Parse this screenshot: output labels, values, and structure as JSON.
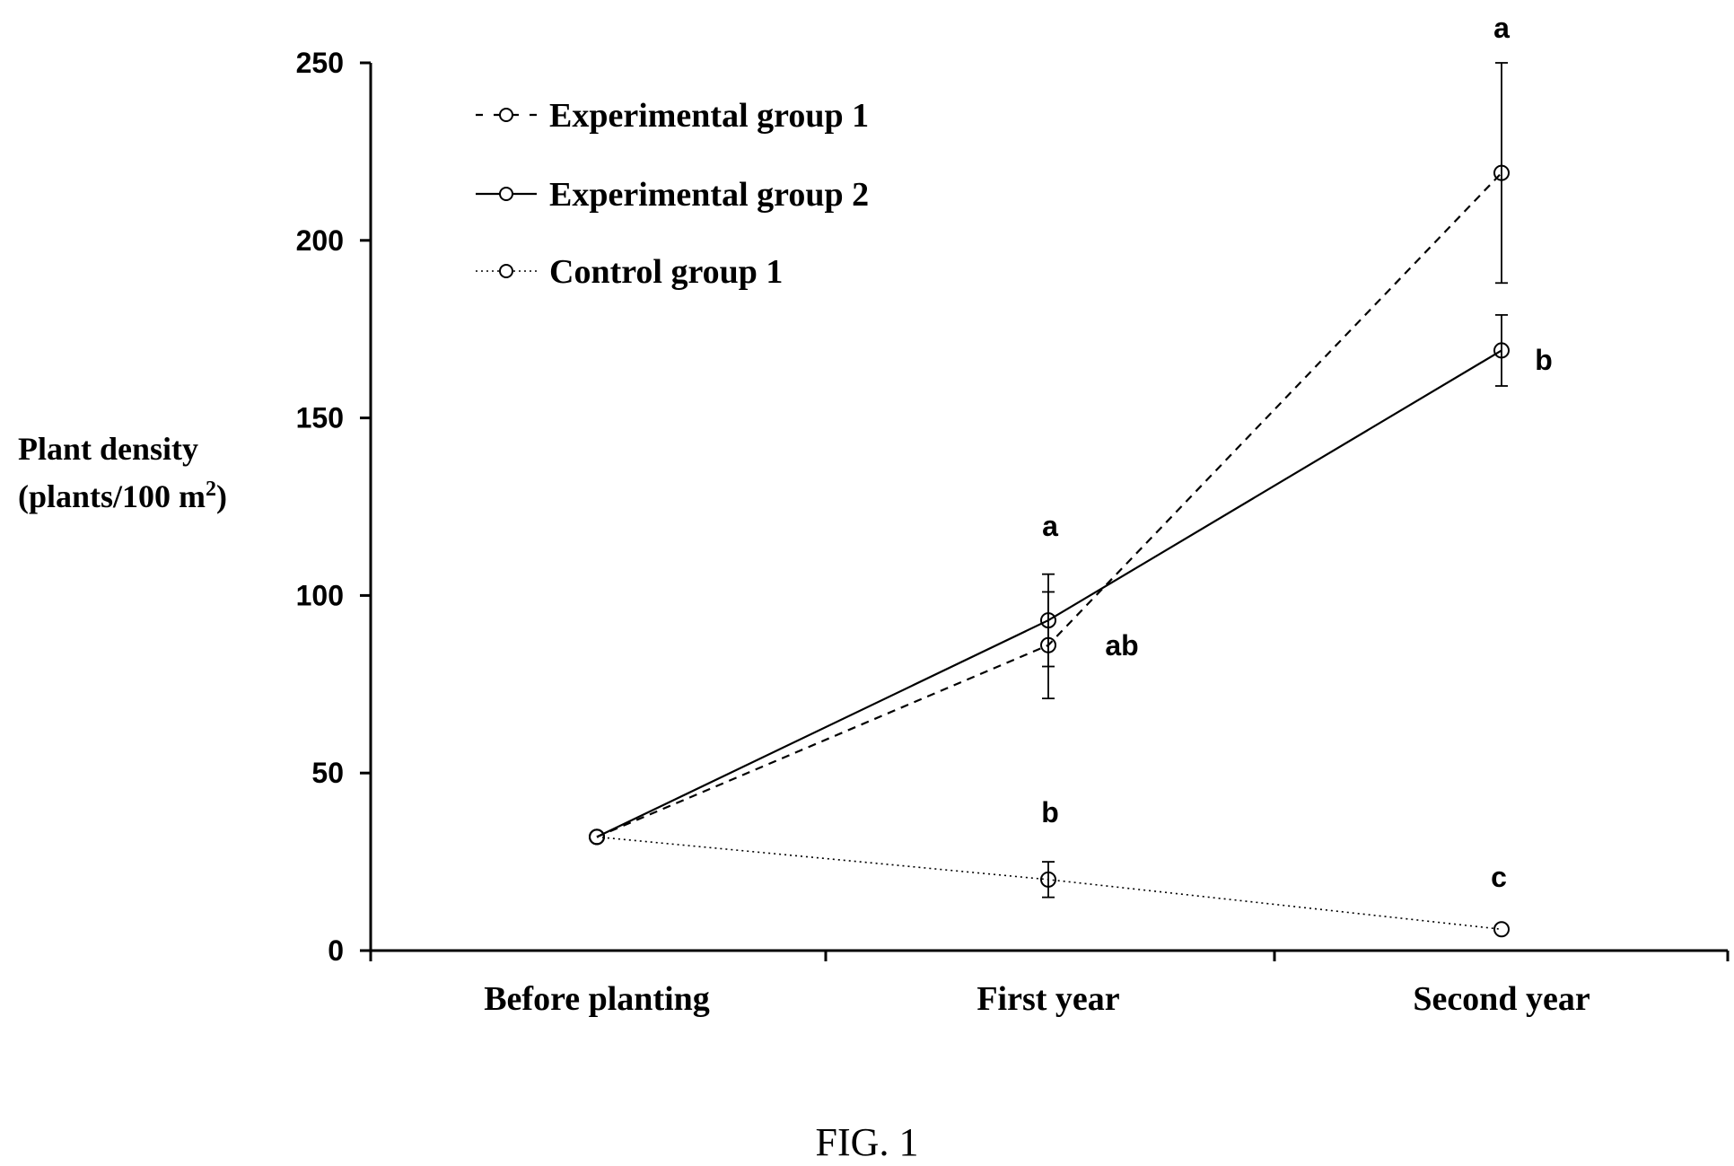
{
  "caption": "FIG. 1",
  "chart_data": {
    "type": "line",
    "title": "",
    "xlabel": "",
    "ylabel_line1": "Plant density",
    "ylabel_line2_main": "(plants/100 m",
    "ylabel_line2_sup": "2",
    "ylabel_line2_end": ")",
    "ylim": [
      0,
      250
    ],
    "yticks": [
      "0",
      "50",
      "100",
      "150",
      "200",
      "250"
    ],
    "ytick_values": [
      0,
      50,
      100,
      150,
      200,
      250
    ],
    "categories": [
      "Before planting",
      "First year",
      "Second year"
    ],
    "legend_position": "top-left",
    "series": [
      {
        "name": "Experimental group 1",
        "line_style": "dashed",
        "values": [
          32,
          86,
          219
        ],
        "errors": [
          null,
          15,
          31
        ],
        "sig_labels": [
          "",
          "ab",
          "a"
        ]
      },
      {
        "name": "Experimental group 2",
        "line_style": "solid",
        "values": [
          32,
          93,
          169
        ],
        "errors": [
          null,
          13,
          10
        ],
        "sig_labels": [
          "",
          "a",
          "b"
        ]
      },
      {
        "name": "Control group 1",
        "line_style": "dotted",
        "values": [
          32,
          20,
          6
        ],
        "errors": [
          null,
          5,
          null
        ],
        "sig_labels": [
          "",
          "b",
          "c"
        ]
      }
    ]
  }
}
